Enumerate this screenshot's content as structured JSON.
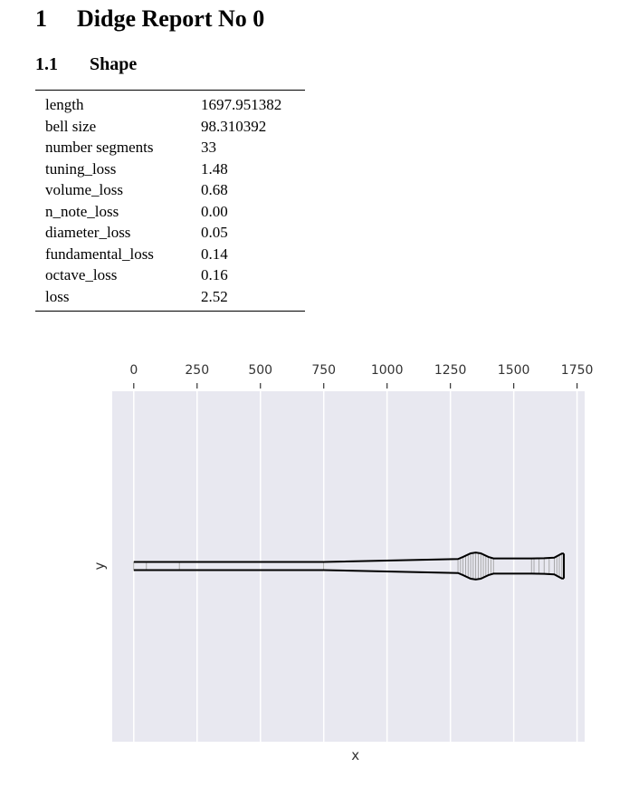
{
  "section": {
    "number": "1",
    "title": "Didge Report No 0"
  },
  "subsection": {
    "number": "1.1",
    "title": "Shape"
  },
  "shape_table": {
    "rows": [
      {
        "key": "length",
        "value": "1697.951382"
      },
      {
        "key": "bell size",
        "value": "98.310392"
      },
      {
        "key": "number segments",
        "value": "33"
      },
      {
        "key": "tuning_loss",
        "value": "1.48"
      },
      {
        "key": "volume_loss",
        "value": "0.68"
      },
      {
        "key": "n_note_loss",
        "value": "0.00"
      },
      {
        "key": "diameter_loss",
        "value": "0.05"
      },
      {
        "key": "fundamental_loss",
        "value": "0.14"
      },
      {
        "key": "octave_loss",
        "value": "0.16"
      },
      {
        "key": "loss",
        "value": "2.52"
      }
    ]
  },
  "chart_data": {
    "type": "line",
    "xlabel": "x",
    "ylabel": "y",
    "xlim": [
      -85,
      1780
    ],
    "x_ticks": [
      "0",
      "250",
      "500",
      "750",
      "1000",
      "1250",
      "1500",
      "1750"
    ],
    "x_tick_values": [
      0,
      250,
      500,
      750,
      1000,
      1250,
      1500,
      1750
    ],
    "grid": true,
    "background_color": "#e8e8f0",
    "grid_color": "#ffffff",
    "line_color": "#000000",
    "segment_color": "#999999",
    "profile": {
      "x": [
        0,
        50,
        180,
        750,
        1280,
        1300,
        1330,
        1350,
        1370,
        1400,
        1420,
        1570,
        1620,
        1660,
        1690,
        1698
      ],
      "diameter": [
        32,
        32,
        32,
        32,
        55,
        72,
        100,
        106,
        100,
        72,
        60,
        60,
        62,
        66,
        98,
        98
      ]
    },
    "segment_x": [
      0,
      50,
      180,
      750,
      1280,
      1290,
      1300,
      1310,
      1320,
      1330,
      1340,
      1350,
      1360,
      1370,
      1380,
      1390,
      1400,
      1410,
      1420,
      1570,
      1580,
      1600,
      1620,
      1640,
      1660,
      1670,
      1680,
      1690,
      1698
    ]
  }
}
